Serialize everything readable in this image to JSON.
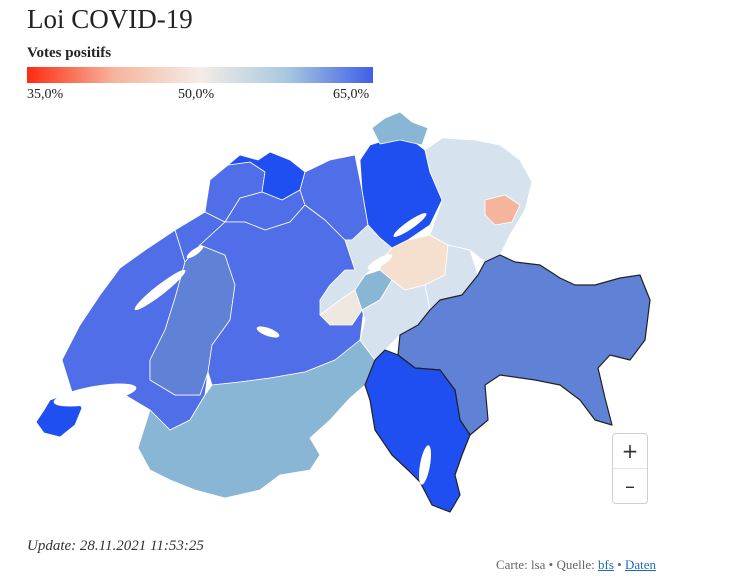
{
  "title": "Loi COVID-19",
  "legend": {
    "title": "Votes positifs",
    "min_label": "35,0%",
    "mid_label": "50,0%",
    "max_label": "65,0%",
    "colors": {
      "low": "#ff2a12",
      "mid": "#f3ede6",
      "high": "#3f5fe8"
    }
  },
  "map": {
    "region_colors": {
      "very_high": "#1f4ff0",
      "high": "#4f6ee8",
      "medium_high": "#5f82d6",
      "medium": "#88b6d4",
      "light": "#d6e3ee",
      "neutral": "#efe8e0",
      "pale_orange": "#f5e0d0",
      "orange": "#f4b59c"
    }
  },
  "zoom": {
    "in_label": "+",
    "out_label": "–"
  },
  "update": "Update: 28.11.2021 11:53:25",
  "footer": {
    "prefix": "Carte: lsa • Quelle: ",
    "bfs": "bfs",
    "separator": " • ",
    "daten": "Daten"
  }
}
